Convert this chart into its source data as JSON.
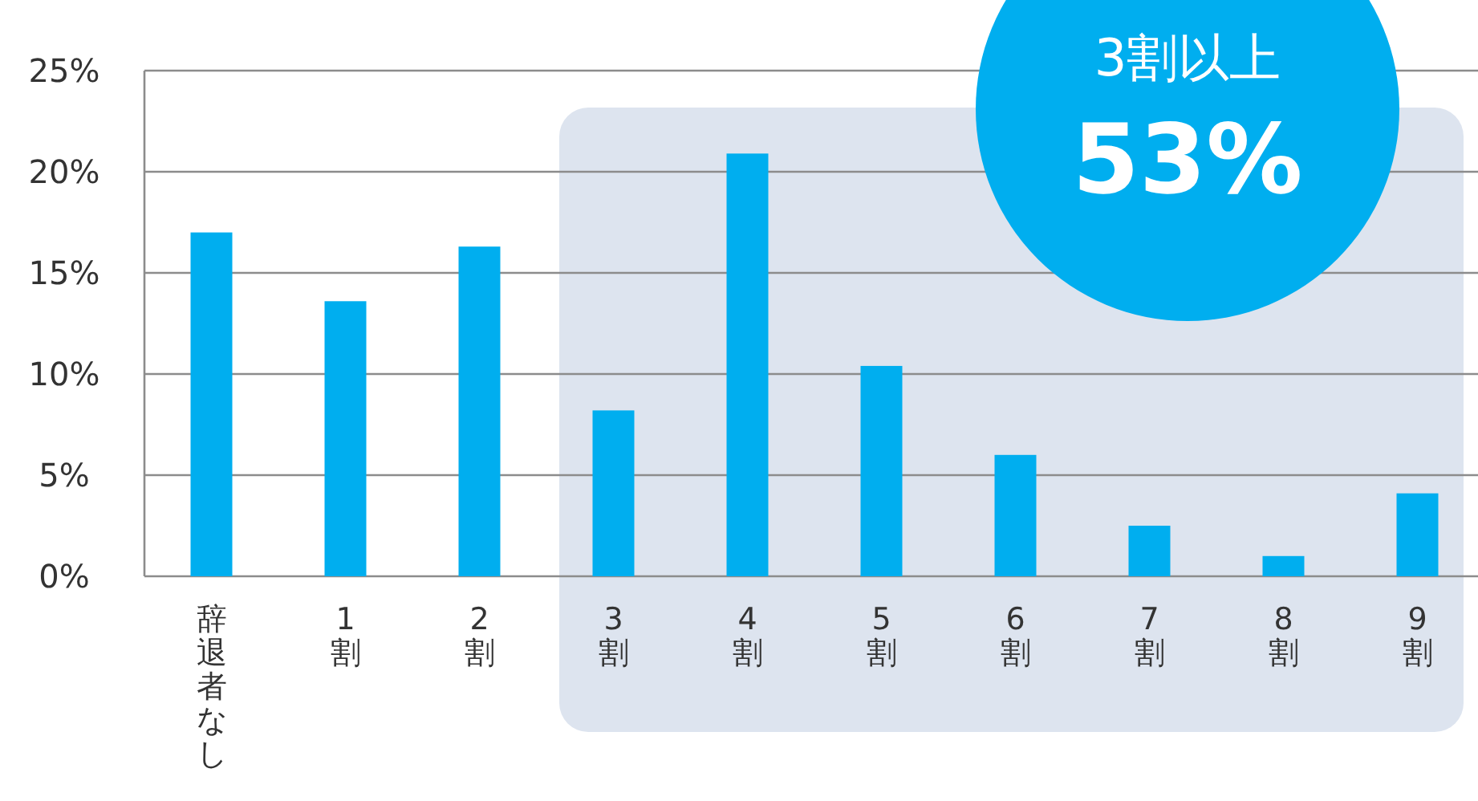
{
  "chart_data": {
    "type": "bar",
    "categories": [
      "辞退者なし",
      "1割",
      "2割",
      "3割",
      "4割",
      "5割",
      "6割",
      "7割",
      "8割",
      "9割"
    ],
    "values": [
      17.0,
      13.6,
      16.3,
      8.2,
      20.9,
      10.4,
      6.0,
      2.5,
      1.0,
      4.1
    ],
    "color": "#00aeef",
    "ylim": [
      0,
      25
    ],
    "yticks": [
      {
        "value": 0,
        "label": "0%"
      },
      {
        "value": 5,
        "label": "5%"
      },
      {
        "value": 10,
        "label": "10%"
      },
      {
        "value": 15,
        "label": "15%"
      },
      {
        "value": 20,
        "label": "20%"
      },
      {
        "value": 25,
        "label": "25%"
      }
    ],
    "grid": "y",
    "bands": [
      {
        "axis": "x",
        "from": "3割",
        "to": "9割",
        "color": "#dde4ef"
      }
    ],
    "annotations": [
      "3割以上",
      "53%"
    ]
  }
}
